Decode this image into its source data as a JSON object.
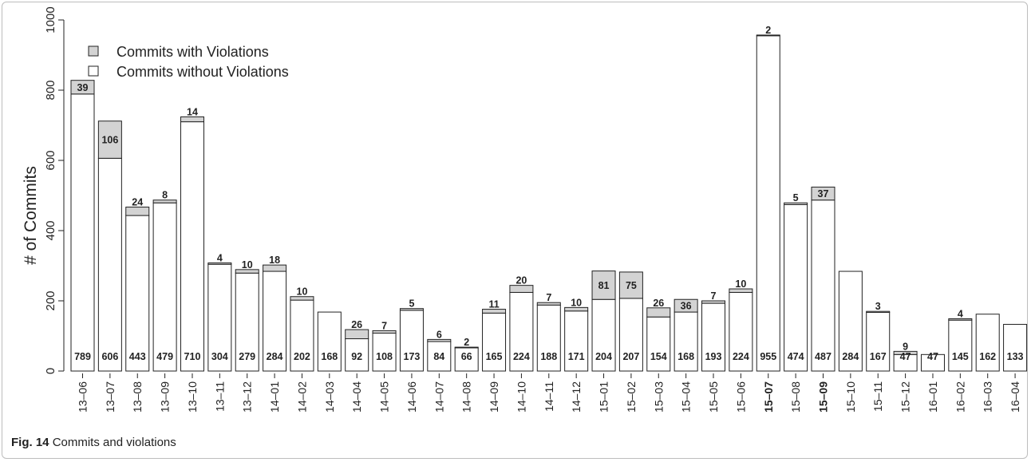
{
  "caption": {
    "label": "Fig. 14",
    "text": "Commits and violations"
  },
  "chart_data": {
    "type": "bar",
    "stacked": true,
    "ylabel": "# of Commits",
    "xlabel": "",
    "ylim": [
      0,
      1000
    ],
    "yticks": [
      0,
      200,
      400,
      600,
      800,
      1000
    ],
    "legend_position": "top-left",
    "categories": [
      "13-06",
      "13-07",
      "13-08",
      "13-09",
      "13-10",
      "13-11",
      "13-12",
      "14-01",
      "14-02",
      "14-03",
      "14-04",
      "14-05",
      "14-06",
      "14-07",
      "14-08",
      "14-09",
      "14-10",
      "14-11",
      "14-12",
      "15-01",
      "15-02",
      "15-03",
      "15-04",
      "15-05",
      "15-06",
      "15-07",
      "15-08",
      "15-09",
      "15-10",
      "15-11",
      "15-12",
      "16-01",
      "16-02",
      "16-03",
      "16-04"
    ],
    "category_labels": [
      "13–06",
      "13–07",
      "13–08",
      "13–09",
      "13–10",
      "13–11",
      "13–12",
      "14–01",
      "14–02",
      "14–03",
      "14–04",
      "14–05",
      "14–06",
      "14–07",
      "14–08",
      "14–09",
      "14–10",
      "14–11",
      "14–12",
      "15–01",
      "15–02",
      "15–03",
      "15–04",
      "15–05",
      "15–06",
      "15–07",
      "15–08",
      "15–09",
      "15–10",
      "15–11",
      "15–12",
      "16–01",
      "16–02",
      "16–03",
      "16–04"
    ],
    "bold_categories": [
      "15-07",
      "15-09"
    ],
    "series": [
      {
        "name": "Commits without Violations",
        "color": "#ffffff",
        "values": [
          789,
          606,
          443,
          479,
          710,
          304,
          279,
          284,
          202,
          168,
          92,
          108,
          173,
          84,
          66,
          165,
          224,
          188,
          171,
          204,
          207,
          154,
          168,
          193,
          224,
          955,
          474,
          487,
          284,
          167,
          47,
          47,
          145,
          162,
          133
        ]
      },
      {
        "name": "Commits with Violations",
        "color": "#d3d3d3",
        "values": [
          39,
          106,
          24,
          8,
          14,
          4,
          10,
          18,
          10,
          0,
          26,
          7,
          5,
          6,
          2,
          11,
          20,
          7,
          10,
          81,
          75,
          26,
          36,
          7,
          10,
          2,
          5,
          37,
          0,
          3,
          9,
          0,
          4,
          0,
          0
        ]
      }
    ]
  }
}
